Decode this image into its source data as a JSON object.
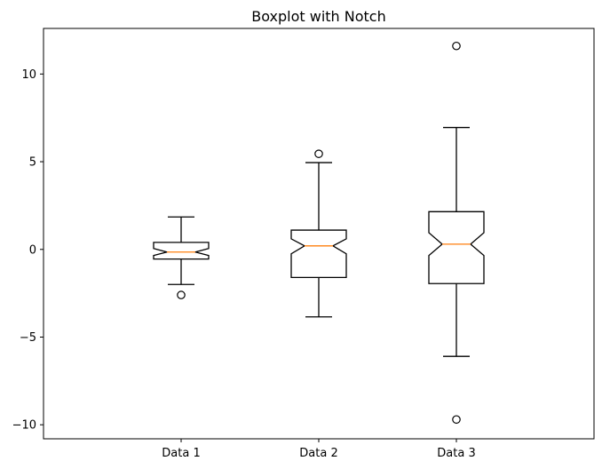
{
  "chart_data": {
    "type": "boxplot",
    "title": "Boxplot with Notch",
    "xlabel": "",
    "ylabel": "",
    "categories": [
      "Data 1",
      "Data 2",
      "Data 3"
    ],
    "ylim": [
      -10.8,
      12.6
    ],
    "yticks": [
      -10,
      -5,
      0,
      5,
      10
    ],
    "ytick_labels": [
      "−10",
      "−5",
      "0",
      "5",
      "10"
    ],
    "grid": false,
    "notch": true,
    "boxes": [
      {
        "label": "Data 1",
        "whislo": -2.0,
        "q1": -0.55,
        "med": -0.15,
        "q3": 0.4,
        "whishi": 1.85,
        "notch_lo": -0.35,
        "notch_hi": 0.05,
        "fliers": [
          -2.6
        ]
      },
      {
        "label": "Data 2",
        "whislo": -3.85,
        "q1": -1.6,
        "med": 0.2,
        "q3": 1.1,
        "whishi": 4.95,
        "notch_lo": -0.25,
        "notch_hi": 0.6,
        "fliers": [
          5.45
        ]
      },
      {
        "label": "Data 3",
        "whislo": -6.1,
        "q1": -1.95,
        "med": 0.3,
        "q3": 2.15,
        "whishi": 6.95,
        "notch_lo": -0.35,
        "notch_hi": 0.95,
        "fliers": [
          11.6,
          -9.7
        ]
      }
    ],
    "colors": {
      "box": "#000000",
      "median": "#ff7f0e",
      "flier": "#000000",
      "axes": "#000000",
      "background": "#ffffff"
    }
  }
}
